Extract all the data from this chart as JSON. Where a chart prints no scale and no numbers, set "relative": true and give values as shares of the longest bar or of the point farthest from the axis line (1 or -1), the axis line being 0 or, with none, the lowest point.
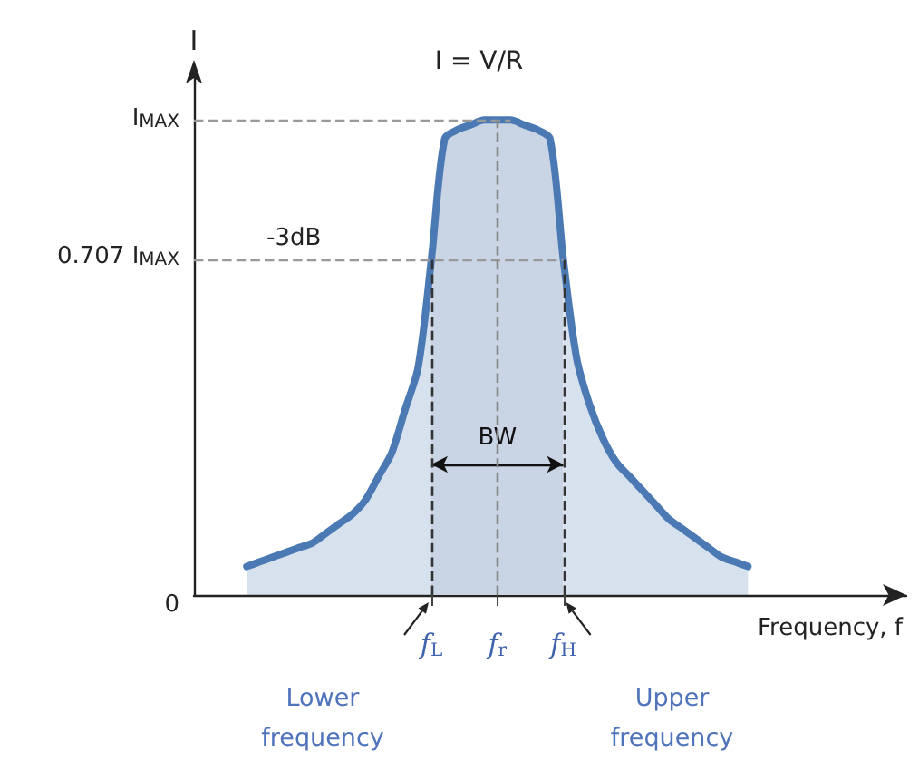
{
  "chart_data": {
    "type": "area",
    "relative": true,
    "xlabel": "Frequency, f",
    "ylabel": "I",
    "categories": [
      null,
      null,
      null,
      null,
      null,
      null,
      null,
      null,
      null,
      null,
      null,
      null,
      null,
      null,
      null,
      null,
      null,
      null,
      "f$_{L}$",
      null,
      null,
      null,
      null,
      "f$_{r}$",
      null,
      null,
      null,
      null,
      "f$_{H}$",
      null,
      null,
      null,
      null,
      null,
      null,
      null,
      null,
      null,
      null,
      null,
      null,
      null,
      null,
      null,
      null,
      null,
      null,
      null,
      null,
      null,
      null,
      null,
      null,
      null,
      null
    ],
    "values": [
      null,
      null,
      null,
      null,
      0.06,
      0.07,
      0.08,
      0.09,
      0.1,
      0.11,
      0.13,
      0.15,
      0.17,
      0.2,
      0.25,
      0.3,
      0.39,
      0.48,
      0.707,
      0.96,
      0.98,
      0.99,
      1,
      1,
      1,
      0.99,
      0.98,
      0.96,
      0.707,
      0.5,
      0.4,
      0.33,
      0.28,
      0.25,
      0.22,
      0.19,
      0.16,
      0.14,
      0.12,
      0.1,
      0.08,
      0.07,
      0.06,
      null,
      null,
      null,
      null,
      null,
      null,
      null,
      null,
      null,
      null,
      null,
      null
    ],
    "color": "#4a79b4",
    "ref_lines": [
      {
        "axis": "y",
        "value": 1,
        "label": "I$_{MAX}$",
        "color": "#999999",
        "line_style": "dashed"
      },
      {
        "axis": "y",
        "value": 0.707,
        "label": "0.707 I$_{MAX}$",
        "color": "#999999",
        "line_style": "dashed"
      },
      {
        "axis": "x",
        "value": "f$_{L}$",
        "color": "#333333",
        "line_style": "dashed"
      },
      {
        "axis": "x",
        "value": "f$_{r}$",
        "color": "#888888",
        "line_style": "dashed"
      },
      {
        "axis": "x",
        "value": "f$_{H}$",
        "color": "#333333",
        "line_style": "dashed"
      }
    ],
    "bands": [
      {
        "axis": "x",
        "from": "f$_{L}$",
        "to": "f$_{H}$",
        "label": "BW",
        "color": "#c9d4e4"
      }
    ],
    "annotations": [
      "0",
      "Lower frequency",
      "Upper frequency",
      {
        "text": "-3dB",
        "y": 0.707
      },
      {
        "text": "I = V/R",
        "x": "f$_{r}$",
        "y": 1
      }
    ]
  }
}
